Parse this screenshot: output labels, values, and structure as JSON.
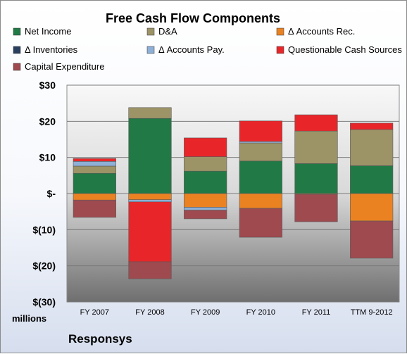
{
  "chart_data": {
    "type": "bar",
    "stacked": true,
    "title": "Free Cash Flow Components",
    "ylabel": "millions",
    "company": "Responsys",
    "ylim": [
      -30,
      30
    ],
    "yticks": [
      30,
      20,
      10,
      0,
      -10,
      -20,
      -30
    ],
    "ytick_labels": [
      "$30",
      "$20",
      "$10",
      "$-",
      "$(10)",
      "$(20)",
      "$(30)"
    ],
    "categories": [
      "FY 2007",
      "FY 2008",
      "FY 2009",
      "FY 2010",
      "FY 2011",
      "TTM 9-2012"
    ],
    "legend_position": "top",
    "series": [
      {
        "name": "Net Income",
        "color": "#217a45",
        "values": [
          5.6,
          20.8,
          6.2,
          9.0,
          8.3,
          7.7
        ]
      },
      {
        "name": "D&A",
        "color": "#9c9367",
        "values": [
          2.0,
          3.0,
          4.0,
          5.0,
          9.0,
          10.0
        ]
      },
      {
        "name": "Δ Accounts Rec.",
        "color": "#ea8222",
        "values": [
          -1.8,
          -1.7,
          -3.8,
          -4.1,
          -0.2,
          -7.6
        ]
      },
      {
        "name": "Δ Inventories",
        "color": "#29415e",
        "values": [
          0,
          0,
          0,
          0,
          0,
          0
        ]
      },
      {
        "name": "Δ Accounts Pay.",
        "color": "#8fb0d6",
        "values": [
          1.3,
          -0.6,
          -0.8,
          0.4,
          0,
          0
        ]
      },
      {
        "name": "Questionable Cash Sources",
        "color": "#e8262a",
        "values": [
          0.8,
          -16.6,
          5.2,
          5.7,
          4.5,
          1.8
        ]
      },
      {
        "name": "Capital Expenditure",
        "color": "#9e4a4f",
        "values": [
          -4.8,
          -4.7,
          -2.4,
          -8.0,
          -7.6,
          -10.3
        ]
      }
    ]
  }
}
